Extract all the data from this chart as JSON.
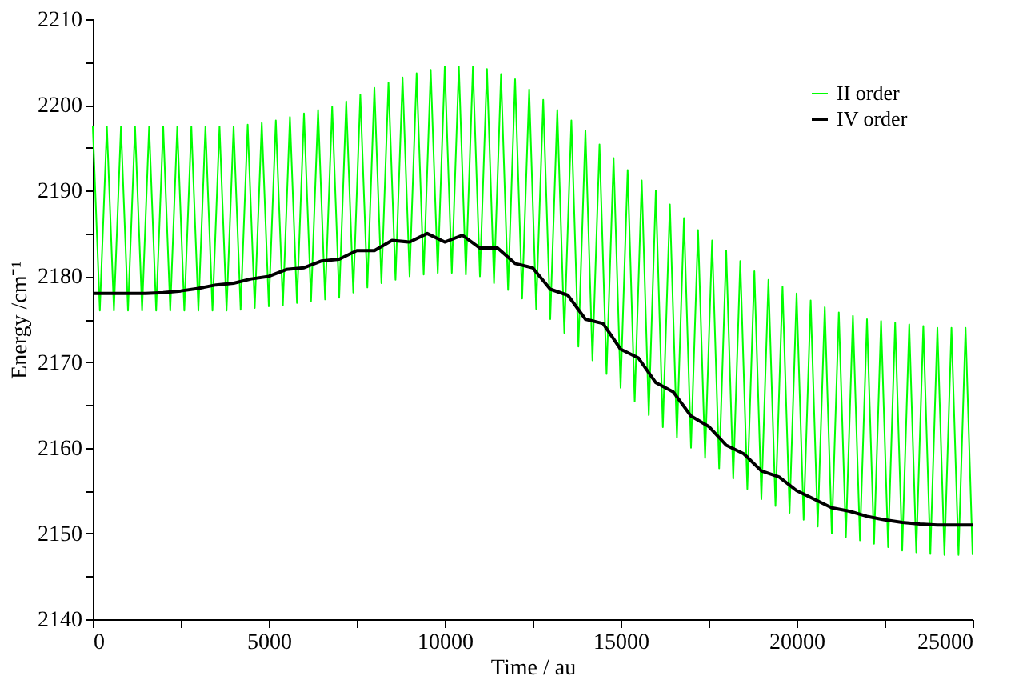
{
  "chart_data": {
    "type": "line",
    "xlabel": "Time / au",
    "ylabel": "Energy /cm⁻¹",
    "xlim": [
      0,
      25000
    ],
    "xticks": [
      0,
      {
        "value": 2500,
        "label": null
      },
      5000,
      {
        "value": 7500,
        "label": null
      },
      10000,
      {
        "value": 12500,
        "label": null
      },
      15000,
      {
        "value": 17500,
        "label": null
      },
      20000,
      {
        "value": 22500,
        "label": null
      },
      25000
    ],
    "ylim": [
      2140,
      2210
    ],
    "yticks": [
      2140,
      {
        "value": 2145,
        "label": null
      },
      2150,
      {
        "value": 2155,
        "label": null
      },
      2160,
      {
        "value": 2165,
        "label": null
      },
      2170,
      {
        "value": 2175,
        "label": null
      },
      2180,
      {
        "value": 2185,
        "label": null
      },
      2190,
      {
        "value": 2195,
        "label": null
      },
      2200,
      {
        "value": 2205,
        "label": null
      },
      2210
    ],
    "grid": false,
    "legend": "top right",
    "marker": "none",
    "line_style": "solid",
    "series": [
      {
        "name": "II order",
        "color": "#00ff00",
        "x": [
          0,
          200,
          400,
          600,
          800,
          1000,
          1200,
          1400,
          1600,
          1800,
          2000,
          2200,
          2400,
          2600,
          2800,
          3000,
          3200,
          3400,
          3600,
          3800,
          4000,
          4200,
          4400,
          4600,
          4800,
          5000,
          5200,
          5400,
          5600,
          5800,
          6000,
          6200,
          6400,
          6600,
          6800,
          7000,
          7200,
          7400,
          7600,
          7800,
          8000,
          8200,
          8400,
          8600,
          8800,
          9000,
          9200,
          9400,
          9600,
          9800,
          10000,
          10200,
          10400,
          10600,
          10800,
          11000,
          11200,
          11400,
          11600,
          11800,
          12000,
          12200,
          12400,
          12600,
          12800,
          13000,
          13200,
          13400,
          13600,
          13800,
          14000,
          14200,
          14400,
          14600,
          14800,
          15000,
          15200,
          15400,
          15600,
          15800,
          16000,
          16200,
          16400,
          16600,
          16800,
          17000,
          17200,
          17400,
          17600,
          17800,
          18000,
          18200,
          18400,
          18600,
          18800,
          19000,
          19200,
          19400,
          19600,
          19800,
          20000,
          20200,
          20400,
          20600,
          20800,
          21000,
          21200,
          21400,
          21600,
          21800,
          22000,
          22200,
          22400,
          22600,
          22800,
          23000,
          23200,
          23400,
          23600,
          23800,
          24000,
          24200,
          24400,
          24600,
          24800,
          25000
        ],
        "values": [
          2197.5,
          2176,
          2197.5,
          2176,
          2197.5,
          2176,
          2197.5,
          2176,
          2197.5,
          2176,
          2197.5,
          2176,
          2197.5,
          2176,
          2197.5,
          2176,
          2197.5,
          2176,
          2197.5,
          2176,
          2197.5,
          2176.1,
          2197.7,
          2176.3,
          2197.9,
          2176.5,
          2198.2,
          2176.6,
          2198.6,
          2176.9,
          2199,
          2177.1,
          2199.4,
          2177.3,
          2199.8,
          2177.5,
          2200.4,
          2178.1,
          2201.2,
          2178.7,
          2202,
          2179.2,
          2202.6,
          2179.6,
          2203.2,
          2180,
          2203.7,
          2180.2,
          2204.1,
          2180.4,
          2204.5,
          2180.4,
          2204.5,
          2180.2,
          2204.5,
          2180,
          2204.2,
          2179.2,
          2203.6,
          2178.4,
          2203,
          2177.4,
          2201.8,
          2176.2,
          2200.6,
          2175,
          2199.4,
          2173.4,
          2198.2,
          2171.8,
          2197,
          2170.2,
          2195.4,
          2168.6,
          2193.8,
          2167,
          2192.4,
          2165.4,
          2191.2,
          2163.8,
          2190,
          2162.4,
          2188.4,
          2161.2,
          2186.8,
          2160,
          2185.4,
          2158.8,
          2184.2,
          2157.6,
          2183,
          2156.4,
          2181.8,
          2155.2,
          2180.6,
          2154,
          2179.6,
          2153.2,
          2178.8,
          2152.4,
          2178,
          2151.6,
          2177.2,
          2150.8,
          2176.4,
          2150,
          2175.8,
          2149.6,
          2175.4,
          2149.2,
          2175,
          2148.8,
          2174.8,
          2148.4,
          2174.6,
          2148,
          2174.4,
          2147.8,
          2174.2,
          2147.6,
          2174,
          2147.5,
          2174,
          2147.5,
          2174,
          2147.5
        ]
      },
      {
        "name": "IV order",
        "color": "#000000",
        "x": [
          0,
          500,
          1000,
          1500,
          2000,
          2500,
          3000,
          3500,
          4000,
          4500,
          5000,
          5500,
          6000,
          6500,
          7000,
          7500,
          8000,
          8500,
          9000,
          9500,
          10000,
          10500,
          11000,
          11500,
          12000,
          12500,
          13000,
          13500,
          14000,
          14500,
          15000,
          15500,
          16000,
          16500,
          17000,
          17500,
          18000,
          18500,
          19000,
          19500,
          20000,
          20500,
          21000,
          21500,
          22000,
          22500,
          23000,
          23500,
          24000,
          24500,
          25000
        ],
        "values": [
          2178,
          2178,
          2178,
          2178,
          2178.1,
          2178.3,
          2178.6,
          2179,
          2179.2,
          2179.7,
          2180,
          2180.8,
          2181,
          2181.8,
          2182,
          2183,
          2183,
          2184.2,
          2184,
          2185,
          2184,
          2184.8,
          2183.3,
          2183.3,
          2181.5,
          2181,
          2178.5,
          2177.8,
          2175,
          2174.5,
          2171.5,
          2170.5,
          2167.6,
          2166.5,
          2163.7,
          2162.5,
          2160.3,
          2159.3,
          2157.3,
          2156.6,
          2155,
          2154,
          2153,
          2152.6,
          2152,
          2151.6,
          2151.3,
          2151.1,
          2151,
          2151,
          2151
        ]
      }
    ]
  }
}
